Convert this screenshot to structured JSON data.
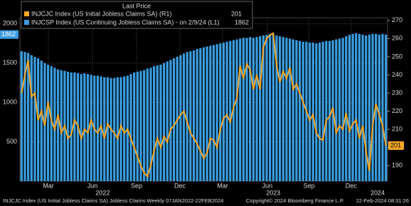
{
  "chart_data": {
    "type": "bar-line",
    "legend_title": "Last Price",
    "xlim": [
      0,
      111
    ],
    "xticks": [
      {
        "value": 8.6,
        "label": "Mar"
      },
      {
        "value": 21.9,
        "label": "Jun"
      },
      {
        "value": 35.2,
        "label": "Sep"
      },
      {
        "value": 48.3,
        "label": "Dec"
      },
      {
        "value": 61.2,
        "label": "Mar"
      },
      {
        "value": 74.7,
        "label": "Jun"
      },
      {
        "value": 87.3,
        "label": "Sep"
      },
      {
        "value": 100,
        "label": "Dec"
      }
    ],
    "year_labels": [
      {
        "value": 25,
        "label": "2022"
      },
      {
        "value": 76.5,
        "label": "2023"
      },
      {
        "value": 108,
        "label": "2024"
      }
    ],
    "ylim": [
      0,
      2075
    ],
    "yticks": [
      500,
      1000,
      1500,
      2000
    ],
    "y2lim": [
      181.4,
      271.5
    ],
    "y2ticks": [
      190,
      200,
      210,
      220,
      230,
      240,
      250,
      260,
      270
    ],
    "grid": true,
    "series": [
      {
        "name": "INJCJC Index (US Initial Jobless Claims SA)  (R1)",
        "last_label": "201",
        "color": "#f5a623",
        "axis": "y2",
        "kind": "line",
        "values": [
          230,
          240,
          248,
          228,
          230,
          215,
          220,
          212,
          225,
          215,
          210,
          218,
          208,
          212,
          205,
          207,
          215,
          212,
          205,
          210,
          208,
          215,
          210,
          208,
          212,
          205,
          213,
          210,
          208,
          205,
          212,
          208,
          210,
          205,
          200,
          195,
          190,
          186,
          184,
          190,
          198,
          205,
          200,
          206,
          203,
          210,
          212,
          215,
          218,
          220,
          214,
          208,
          205,
          202,
          198,
          194,
          197,
          205,
          204,
          200,
          210,
          216,
          218,
          214,
          222,
          227,
          245,
          238,
          246,
          243,
          232,
          240,
          232,
          255,
          260,
          262,
          263,
          245,
          236,
          242,
          238,
          244,
          232,
          235,
          230,
          225,
          220,
          215,
          218,
          208,
          205,
          204,
          215,
          217,
          222,
          208,
          212,
          210,
          219,
          209,
          213,
          215,
          205,
          212,
          198,
          187,
          212,
          224,
          218,
          212,
          201
        ]
      },
      {
        "name": "INJCSP Index (US Continuing Jobless Claims SA) - on 2/9/24 (L1)",
        "last_label": "1862",
        "color": "#3a9de0",
        "axis": "y",
        "kind": "bar",
        "values": [
          1650,
          1640,
          1630,
          1600,
          1580,
          1560,
          1530,
          1500,
          1480,
          1460,
          1440,
          1420,
          1410,
          1400,
          1390,
          1380,
          1380,
          1370,
          1360,
          1370,
          1360,
          1350,
          1340,
          1340,
          1330,
          1320,
          1320,
          1310,
          1310,
          1320,
          1320,
          1330,
          1340,
          1360,
          1380,
          1390,
          1400,
          1410,
          1430,
          1440,
          1460,
          1470,
          1480,
          1500,
          1520,
          1540,
          1560,
          1580,
          1600,
          1620,
          1640,
          1650,
          1660,
          1680,
          1690,
          1700,
          1710,
          1720,
          1730,
          1740,
          1750,
          1760,
          1770,
          1780,
          1790,
          1800,
          1810,
          1820,
          1820,
          1830,
          1820,
          1830,
          1840,
          1850,
          1860,
          1870,
          1860,
          1850,
          1840,
          1830,
          1820,
          1810,
          1800,
          1790,
          1780,
          1770,
          1770,
          1760,
          1760,
          1750,
          1760,
          1770,
          1780,
          1780,
          1790,
          1800,
          1810,
          1820,
          1840,
          1860,
          1870,
          1880,
          1870,
          1860,
          1850,
          1860,
          1870,
          1870,
          1860,
          1870,
          1862
        ]
      }
    ],
    "footer_left": "INJCJC Index (US Initial Jobless Claims SA) Jobless Claims Weekly 07JAN2022-22FEB2024",
    "footer_center": "Copyright© 2024 Bloomberg Finance L.P.",
    "footer_right": "22-Feb-2024 08:31:26"
  }
}
